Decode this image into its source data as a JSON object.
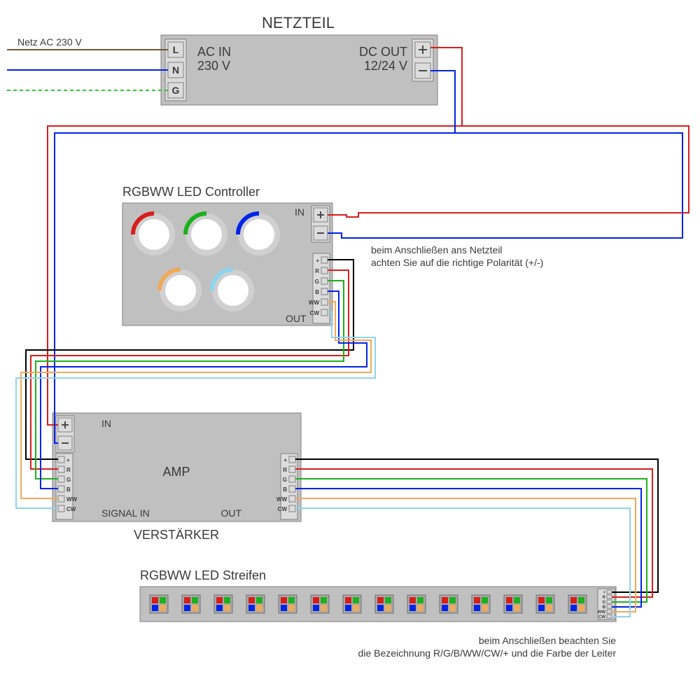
{
  "colors": {
    "boxFill": "#c0c0c0",
    "boxStroke": "#808080",
    "termFill": "#dcdcdc",
    "black": "#000000",
    "red": "#d81e1d",
    "green": "#1cb11c",
    "blue": "#0023e9",
    "warmwhite": "#f0a95b",
    "coolwhite": "#8ed5ee",
    "brown": "#6f5a36",
    "ground": "#2ecb2e"
  },
  "psu": {
    "title": "NETZTEIL",
    "ac_in_label": "AC IN",
    "ac_v": "230 V",
    "dc_out_label": "DC OUT",
    "dc_v": "12/24 V",
    "ac_terminals": [
      "L",
      "N",
      "G"
    ],
    "ac_line_label": "Netz AC 230 V"
  },
  "controller": {
    "title": "RGBWW LED Controller",
    "in": "IN",
    "out": "OUT",
    "out_labels": [
      "+",
      "R",
      "G",
      "B",
      "WW",
      "CW"
    ],
    "note1": "beim Anschließen ans Netzteil",
    "note2": "achten Sie auf die richtige Polarität (+/-)"
  },
  "amp": {
    "title": "AMP",
    "subtitle": "VERSTÄRKER",
    "in": "IN",
    "signal_in": "SIGNAL IN",
    "out": "OUT",
    "labels": [
      "+",
      "R",
      "G",
      "B",
      "WW",
      "CW"
    ]
  },
  "strip": {
    "title": "RGBWW LED Streifen",
    "labels": [
      "+",
      "R",
      "G",
      "B",
      "WW",
      "CW"
    ],
    "note1": "beim Anschließen beachten Sie",
    "note2": "die Bezeichnung R/G/B/WW/CW/+ und die Farbe der Leiter"
  }
}
